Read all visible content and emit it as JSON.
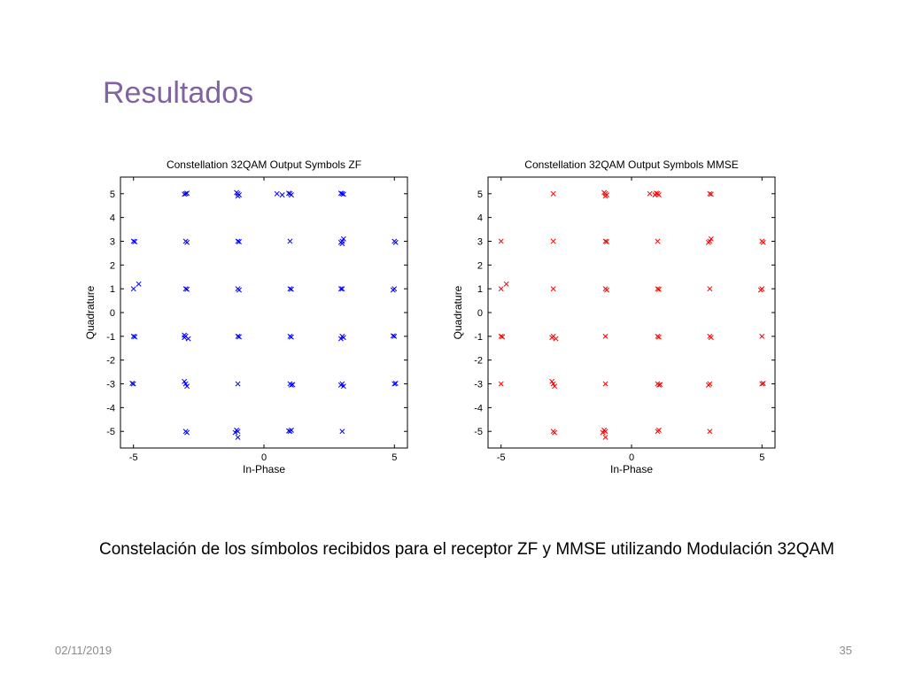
{
  "slide": {
    "title": "Resultados",
    "caption": "Constelación de los símbolos recibidos para el receptor ZF y MMSE utilizando Modulación 32QAM",
    "date": "02/11/2019",
    "page_number": "35"
  },
  "chart_data": [
    {
      "type": "scatter",
      "title": "Constellation 32QAM Output Symbols ZF",
      "xlabel": "In-Phase",
      "ylabel": "Quadrature",
      "xlim": [
        -5.5,
        5.5
      ],
      "ylim": [
        -5.7,
        5.7
      ],
      "xticks": [
        -5,
        0,
        5
      ],
      "yticks": [
        5,
        4,
        3,
        2,
        1,
        0,
        -1,
        -2,
        -3,
        -4,
        -5
      ],
      "grid": false,
      "marker": "x",
      "color": "#0000ff",
      "series": [
        {
          "x": [
            -3,
            -2.95,
            -3.05,
            -1,
            -1.05,
            -0.95,
            -1,
            1,
            1.05,
            0.95,
            3,
            3.05,
            2.95,
            0.5,
            0.7,
            -5,
            -4.95,
            -3,
            -2.95,
            -1,
            -0.95,
            1,
            3,
            3.05,
            2.95,
            3,
            5,
            5.05,
            -5,
            -4.8,
            -3,
            -2.95,
            -1,
            -0.95,
            1,
            1.05,
            3,
            2.95,
            5,
            4.95,
            -5,
            -4.95,
            -3,
            -3.05,
            -2.9,
            -3.05,
            -1,
            -0.95,
            1,
            1.05,
            3,
            3.05,
            2.95,
            5,
            4.95,
            -5,
            -5.05,
            -3,
            -3.05,
            -2.95,
            -1,
            1,
            1.05,
            1.1,
            3,
            2.95,
            3.05,
            5,
            5.05,
            -3,
            -2.95,
            -1,
            -1.1,
            -1.05,
            -1,
            1,
            1.05,
            0.95,
            3
          ],
          "y": [
            5,
            5.02,
            4.98,
            5,
            5.05,
            4.95,
            4.9,
            5,
            4.95,
            5.02,
            5,
            4.98,
            5.02,
            5,
            4.95,
            3,
            2.98,
            3,
            2.95,
            3,
            2.98,
            3,
            3,
            3.1,
            2.95,
            2.9,
            3,
            2.95,
            1,
            1.2,
            1,
            0.98,
            1,
            0.95,
            1,
            0.98,
            1,
            1,
            1,
            0.95,
            -1,
            -1.02,
            -1,
            -1.05,
            -1.1,
            -0.95,
            -1,
            -1.02,
            -1,
            -1.03,
            -1,
            -1.05,
            -1.1,
            -1,
            -0.98,
            -3,
            -2.98,
            -3,
            -2.9,
            -3.1,
            -3,
            -3,
            -3.05,
            -3.03,
            -3,
            -3.05,
            -3.1,
            -3,
            -2.98,
            -5,
            -5.05,
            -5,
            -5.05,
            -4.95,
            -5.25,
            -5,
            -4.95,
            -4.98,
            -5
          ]
        }
      ]
    },
    {
      "type": "scatter",
      "title": "Constellation 32QAM Output Symbols MMSE",
      "xlabel": "In-Phase",
      "ylabel": "Quadrature",
      "xlim": [
        -5.5,
        5.5
      ],
      "ylim": [
        -5.7,
        5.7
      ],
      "xticks": [
        -5,
        0,
        5
      ],
      "yticks": [
        5,
        4,
        3,
        2,
        1,
        0,
        -1,
        -2,
        -3,
        -4,
        -5
      ],
      "grid": false,
      "marker": "x",
      "color": "#ff0000",
      "series": [
        {
          "x": [
            -3,
            -1,
            -1.05,
            -0.95,
            -1,
            1,
            1.05,
            0.95,
            3,
            3.05,
            0.7,
            0.9,
            -5,
            -3,
            -1,
            -0.95,
            1,
            3,
            3.05,
            2.95,
            5,
            5.05,
            -5,
            -4.8,
            -3,
            -1,
            -0.95,
            1,
            1.05,
            3,
            5,
            4.95,
            -5,
            -4.95,
            -3,
            -3.05,
            -2.9,
            -1,
            1,
            1.05,
            3,
            3.05,
            5,
            -5,
            -3,
            -3.05,
            -2.95,
            -1,
            1,
            1.05,
            1.1,
            3,
            2.95,
            5,
            5.05,
            -3,
            -2.95,
            -1,
            -1.1,
            -1.05,
            -1,
            1,
            1.05,
            3
          ],
          "y": [
            5,
            5,
            5.05,
            4.95,
            4.9,
            5,
            4.95,
            5.02,
            5,
            4.98,
            5,
            4.95,
            3,
            3,
            3,
            2.98,
            3,
            3,
            3.1,
            2.95,
            3,
            2.95,
            1,
            1.2,
            1,
            1,
            0.95,
            1,
            0.98,
            1,
            1,
            0.95,
            -1,
            -1.02,
            -1,
            -1.05,
            -1.1,
            -1,
            -1,
            -1.03,
            -1,
            -1.05,
            -1,
            -3,
            -3,
            -2.9,
            -3.1,
            -3,
            -3,
            -3.05,
            -3.03,
            -3,
            -3.05,
            -3,
            -2.98,
            -5,
            -5.05,
            -5,
            -5.05,
            -4.95,
            -5.25,
            -5,
            -4.95,
            -5
          ]
        }
      ]
    }
  ]
}
